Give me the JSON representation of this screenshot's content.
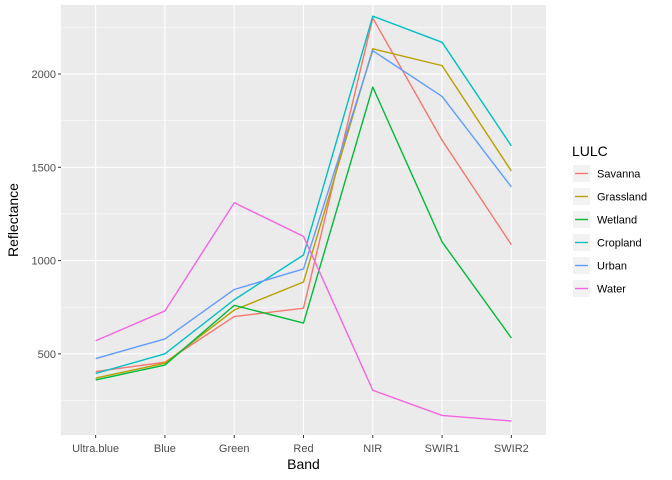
{
  "chart_data": {
    "type": "line",
    "xlabel": "Band",
    "ylabel": "Reflectance",
    "categories": [
      "Ultra.blue",
      "Blue",
      "Green",
      "Red",
      "NIR",
      "SWIR1",
      "SWIR2"
    ],
    "ylim": [
      65,
      2370
    ],
    "yticks": [
      500,
      1000,
      1500,
      2000
    ],
    "grid": true,
    "legend": {
      "title": "LULC",
      "placement": "right"
    },
    "series": [
      {
        "name": "Savanna",
        "color": "#F8766D",
        "values": [
          405,
          455,
          700,
          745,
          2300,
          1645,
          1085
        ]
      },
      {
        "name": "Grassland",
        "color": "#B79F00",
        "values": [
          370,
          450,
          735,
          885,
          2135,
          2045,
          1480
        ]
      },
      {
        "name": "Wetland",
        "color": "#00BA38",
        "values": [
          360,
          440,
          760,
          665,
          1930,
          1100,
          585
        ]
      },
      {
        "name": "Cropland",
        "color": "#00BFC4",
        "values": [
          395,
          500,
          790,
          1030,
          2310,
          2170,
          1615
        ]
      },
      {
        "name": "Urban",
        "color": "#619CFF",
        "values": [
          475,
          580,
          845,
          955,
          2125,
          1880,
          1395
        ]
      },
      {
        "name": "Water",
        "color": "#F564E3",
        "values": [
          570,
          730,
          1310,
          1130,
          305,
          170,
          140
        ]
      }
    ]
  }
}
